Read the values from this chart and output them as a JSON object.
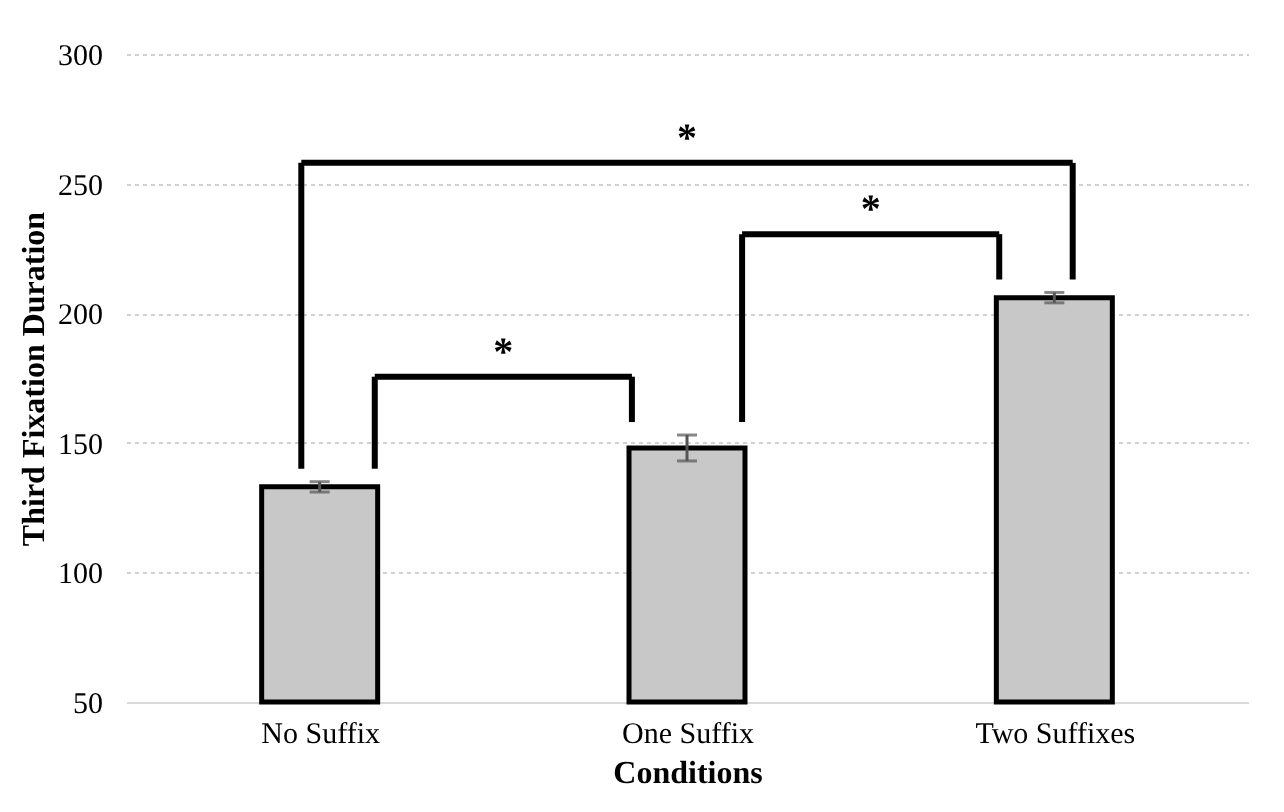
{
  "chart_data": {
    "type": "bar",
    "xlabel": "Conditions",
    "ylabel": "Third Fixation Duration",
    "categories": [
      "No Suffix",
      "One Suffix",
      "Two Suffixes"
    ],
    "values": [
      133,
      148,
      206
    ],
    "errors": [
      2,
      5,
      2
    ],
    "color": "#c8c8c8",
    "ylim": [
      50,
      300
    ],
    "yticks": [
      50,
      100,
      150,
      200,
      250,
      300
    ],
    "grid": "y",
    "annotations": [
      "*",
      "*",
      "*"
    ]
  }
}
